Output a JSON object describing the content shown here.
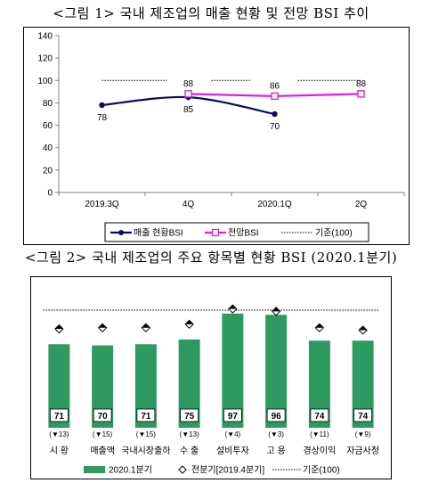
{
  "figure1": {
    "title": "<그림 1> 국내 제조업의 매출 현황 및 전망 BSI 추이",
    "chart_data": {
      "type": "line",
      "categories": [
        "2019.3Q",
        "4Q",
        "2020.1Q",
        "2Q"
      ],
      "ylim": [
        0,
        140
      ],
      "yticks": [
        0,
        20,
        40,
        60,
        80,
        100,
        120,
        140
      ],
      "series": [
        {
          "name": "매출 현황BSI",
          "color": "#0c0c66",
          "values": [
            78,
            85,
            70,
            null
          ],
          "labels": [
            "78",
            "85",
            "70",
            ""
          ]
        },
        {
          "name": "전망BSI",
          "color": "#e020e0",
          "values": [
            null,
            88,
            86,
            88
          ],
          "labels": [
            "",
            "88",
            "86",
            "88"
          ]
        },
        {
          "name": "기준(100)",
          "color": "#000000",
          "style": "dotted",
          "values": [
            100,
            100,
            100,
            100
          ]
        }
      ],
      "legend_position": "bottom"
    }
  },
  "figure2": {
    "title": "<그림 2> 국내 제조업의 주요 항목별 현황 BSI (2020.1분기)",
    "chart_data": {
      "type": "bar",
      "categories": [
        "시 황",
        "매출액",
        "국내시장출하",
        "수 출",
        "설비투자",
        "고 용",
        "경상이익",
        "자금사정"
      ],
      "series": [
        {
          "name": "2020.1분기",
          "color": "#2e9a62",
          "values": [
            71,
            70,
            71,
            75,
            97,
            96,
            74,
            74
          ],
          "labels": [
            "71",
            "70",
            "71",
            "75",
            "97",
            "96",
            "74",
            "74"
          ]
        },
        {
          "name": "전분기[2019.4분기]",
          "marker": "diamond",
          "values": [
            84,
            85,
            85,
            88,
            101,
            99,
            85,
            83
          ]
        },
        {
          "name": "기준(100)",
          "style": "dotted",
          "values": [
            100,
            100,
            100,
            100,
            100,
            100,
            100,
            100
          ]
        }
      ],
      "change_labels": [
        "(▼13)",
        "(▼15)",
        "(▼15)",
        "(▼13)",
        "(▼4)",
        "(▼3)",
        "(▼11)",
        "(▼9)"
      ],
      "ylim": [
        0,
        115
      ],
      "legend_position": "bottom"
    }
  }
}
